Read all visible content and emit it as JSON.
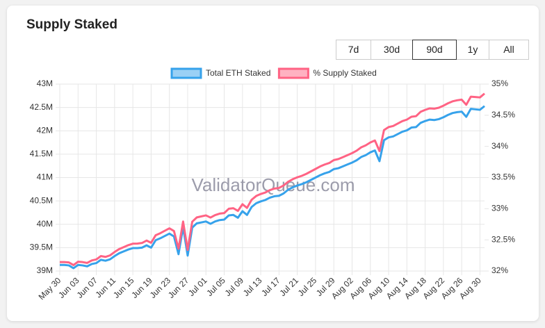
{
  "header": {
    "title": "Supply Staked"
  },
  "range_buttons": {
    "options": [
      "7d",
      "30d",
      "90d",
      "1y",
      "All"
    ],
    "selected": "90d"
  },
  "watermark": "ValidatorQueue.com",
  "chart_data": {
    "type": "line",
    "categories": [
      "May 30",
      null,
      null,
      null,
      "Jun 03",
      null,
      null,
      null,
      "Jun 07",
      null,
      null,
      null,
      "Jun 11",
      null,
      null,
      null,
      "Jun 15",
      null,
      null,
      null,
      "Jun 19",
      null,
      null,
      null,
      "Jun 23",
      null,
      null,
      null,
      "Jun 27",
      null,
      null,
      null,
      "Jul 01",
      null,
      null,
      null,
      "Jul 05",
      null,
      null,
      null,
      "Jul 09",
      null,
      null,
      null,
      "Jul 13",
      null,
      null,
      null,
      "Jul 17",
      null,
      null,
      null,
      "Jul 21",
      null,
      null,
      null,
      "Jul 25",
      null,
      null,
      null,
      "Jul 29",
      null,
      null,
      null,
      "Aug 02",
      null,
      null,
      null,
      "Aug 06",
      null,
      null,
      null,
      "Aug 10",
      null,
      null,
      null,
      "Aug 14",
      null,
      null,
      null,
      "Aug 18",
      null,
      null,
      null,
      "Aug 22",
      null,
      null,
      null,
      "Aug 26",
      null,
      null,
      null,
      "Aug 30",
      null
    ],
    "series": [
      {
        "name": "Total ETH Staked",
        "color": "#36a2eb",
        "fill": "#9ad0f5",
        "axis": "y",
        "values": [
          39.13,
          39.13,
          39.12,
          39.06,
          39.13,
          39.12,
          39.1,
          39.15,
          39.17,
          39.24,
          39.22,
          39.25,
          39.32,
          39.38,
          39.42,
          39.46,
          39.49,
          39.49,
          39.5,
          39.55,
          39.5,
          39.66,
          39.7,
          39.75,
          39.8,
          39.74,
          39.36,
          39.94,
          39.33,
          39.93,
          40.02,
          40.04,
          40.06,
          40.01,
          40.06,
          40.09,
          40.1,
          40.19,
          40.2,
          40.14,
          40.28,
          40.2,
          40.37,
          40.45,
          40.49,
          40.52,
          40.57,
          40.6,
          40.61,
          40.66,
          40.74,
          40.79,
          40.83,
          40.86,
          40.9,
          40.95,
          41.0,
          41.05,
          41.09,
          41.12,
          41.18,
          41.2,
          41.24,
          41.28,
          41.32,
          41.37,
          41.44,
          41.48,
          41.54,
          41.58,
          41.35,
          41.8,
          41.86,
          41.88,
          41.93,
          41.98,
          42.01,
          42.07,
          42.08,
          42.17,
          42.21,
          42.24,
          42.23,
          42.25,
          42.29,
          42.34,
          42.38,
          42.4,
          42.41,
          42.3,
          42.47,
          42.46,
          42.45,
          42.53
        ]
      },
      {
        "name": "% Supply Staked",
        "color": "#ff6384",
        "fill": "#ffb1c1",
        "axis": "y2",
        "values": [
          32.143,
          32.144,
          32.138,
          32.095,
          32.149,
          32.143,
          32.13,
          32.169,
          32.186,
          32.24,
          32.227,
          32.251,
          32.305,
          32.352,
          32.383,
          32.415,
          32.439,
          32.441,
          32.45,
          32.489,
          32.453,
          32.575,
          32.607,
          32.646,
          32.685,
          32.642,
          32.358,
          32.795,
          32.339,
          32.791,
          32.86,
          32.877,
          32.893,
          32.858,
          32.897,
          32.921,
          32.93,
          32.999,
          33.008,
          32.965,
          33.072,
          33.013,
          33.143,
          33.204,
          33.236,
          33.26,
          33.299,
          33.323,
          33.333,
          33.372,
          33.433,
          33.473,
          33.504,
          33.528,
          33.56,
          33.599,
          33.638,
          33.678,
          33.709,
          33.733,
          33.78,
          33.797,
          33.828,
          33.86,
          33.892,
          33.931,
          33.985,
          34.017,
          34.063,
          34.095,
          33.925,
          34.263,
          34.31,
          34.327,
          34.366,
          34.405,
          34.43,
          34.476,
          34.485,
          34.555,
          34.586,
          34.61,
          34.605,
          34.621,
          34.653,
          34.692,
          34.723,
          34.74,
          34.75,
          34.668,
          34.798,
          34.792,
          34.786,
          34.848
        ]
      }
    ],
    "ylim": [
      39,
      43
    ],
    "yticks": [
      {
        "value": 39,
        "label": "39M"
      },
      {
        "value": 39.5,
        "label": "39.5M"
      },
      {
        "value": 40,
        "label": "40M"
      },
      {
        "value": 40.5,
        "label": "40.5M"
      },
      {
        "value": 41,
        "label": "41M"
      },
      {
        "value": 41.5,
        "label": "41.5M"
      },
      {
        "value": 42,
        "label": "42M"
      },
      {
        "value": 42.5,
        "label": "42.5M"
      },
      {
        "value": 43,
        "label": "43M"
      }
    ],
    "y2lim": [
      32,
      35
    ],
    "y2ticks": [
      {
        "value": 32,
        "label": "32%"
      },
      {
        "value": 32.5,
        "label": "32.5%"
      },
      {
        "value": 33,
        "label": "33%"
      },
      {
        "value": 33.5,
        "label": "33.5%"
      },
      {
        "value": 34,
        "label": "34%"
      },
      {
        "value": 34.5,
        "label": "34.5%"
      },
      {
        "value": 35,
        "label": "35%"
      }
    ],
    "grid": true,
    "legend": "top"
  }
}
